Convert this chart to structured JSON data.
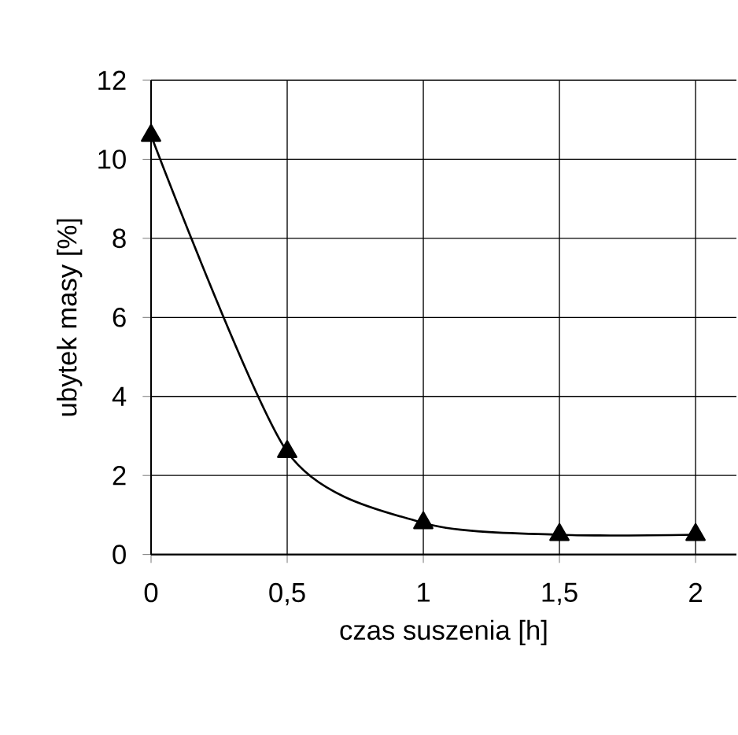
{
  "chart_data": {
    "type": "line",
    "xlabel": "czas suszenia [h]",
    "ylabel": "ubytek masy [%]",
    "x": [
      0,
      0.5,
      1,
      1.5,
      2
    ],
    "series": [
      {
        "color": "#000000",
        "values": [
          10.6,
          2.6,
          0.8,
          0.5,
          0.5
        ]
      }
    ],
    "xlim": [
      0,
      2.15
    ],
    "ylim": [
      0,
      12
    ],
    "xticks": [
      0,
      {
        "value": 0.5,
        "label": "0,5"
      },
      1,
      {
        "value": 1.5,
        "label": "1,5"
      },
      2
    ],
    "yticks": [
      0,
      2,
      4,
      6,
      8,
      10,
      12
    ],
    "grid": true,
    "marker": "triangle",
    "line_style": "solid"
  }
}
